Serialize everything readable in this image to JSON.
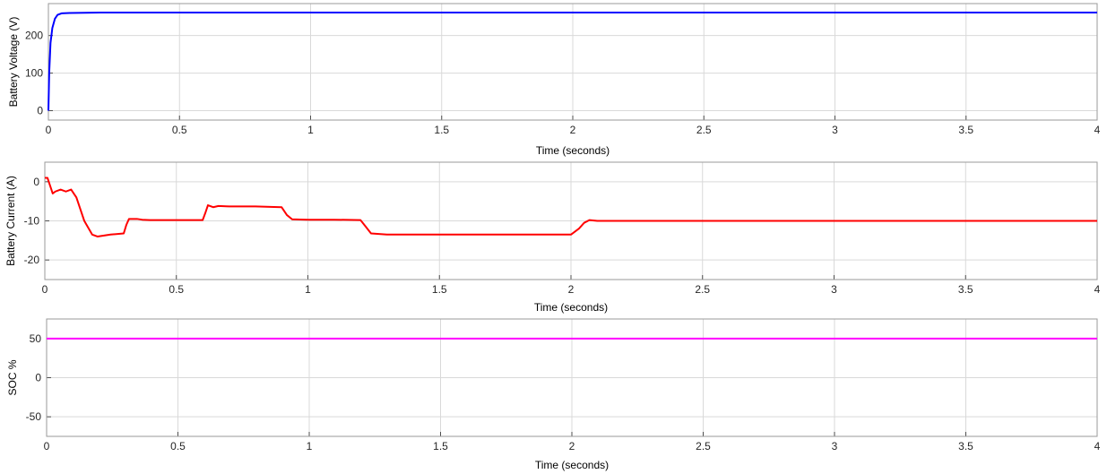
{
  "chart_data": [
    {
      "type": "line",
      "ylabel": "Battery Voltage (V)",
      "xlabel": "Time (seconds)",
      "xlim": [
        0,
        4
      ],
      "ylim": [
        -25,
        285
      ],
      "xticks": [
        0,
        0.5,
        1,
        1.5,
        2,
        2.5,
        3,
        3.5,
        4
      ],
      "xtick_labels": [
        "0",
        "0.5",
        "1",
        "1.5",
        "2",
        "2.5",
        "3",
        "3.5",
        "4"
      ],
      "yticks": [
        0,
        100,
        200
      ],
      "ytick_labels": [
        "0",
        "100",
        "200"
      ],
      "grid": true,
      "series": [
        {
          "color": "#0000ff",
          "x": [
            0,
            0.003,
            0.008,
            0.015,
            0.025,
            0.035,
            0.05,
            0.08,
            0.2,
            0.5,
            1,
            2,
            3,
            4
          ],
          "y": [
            0,
            100,
            180,
            220,
            245,
            255,
            259,
            260,
            261,
            261,
            261,
            261,
            261,
            261
          ]
        }
      ]
    },
    {
      "type": "line",
      "ylabel": "Battery Current (A)",
      "xlabel": "Time (seconds)",
      "xlim": [
        0,
        4
      ],
      "ylim": [
        -25,
        5
      ],
      "xticks": [
        0,
        0.5,
        1,
        1.5,
        2,
        2.5,
        3,
        3.5,
        4
      ],
      "xtick_labels": [
        "0",
        "0.5",
        "1",
        "1.5",
        "2",
        "2.5",
        "3",
        "3.5",
        "4"
      ],
      "yticks": [
        0,
        -10,
        -20
      ],
      "ytick_labels": [
        "0",
        "-10",
        "-20"
      ],
      "grid": true,
      "series": [
        {
          "color": "#ff0000",
          "x": [
            0,
            0.01,
            0.02,
            0.03,
            0.04,
            0.06,
            0.08,
            0.1,
            0.12,
            0.15,
            0.18,
            0.2,
            0.25,
            0.3,
            0.31,
            0.32,
            0.35,
            0.37,
            0.4,
            0.5,
            0.6,
            0.61,
            0.62,
            0.64,
            0.66,
            0.7,
            0.8,
            0.9,
            0.92,
            0.94,
            1.0,
            1.1,
            1.2,
            1.22,
            1.24,
            1.3,
            1.5,
            1.8,
            2.0,
            2.03,
            2.05,
            2.07,
            2.1,
            2.2,
            2.5,
            3.0,
            3.5,
            4.0
          ],
          "y": [
            1,
            1,
            -1,
            -3,
            -2.5,
            -2,
            -2.5,
            -2,
            -4,
            -10,
            -13.5,
            -14,
            -13.5,
            -13.2,
            -11,
            -9.5,
            -9.5,
            -9.7,
            -9.8,
            -9.8,
            -9.8,
            -8,
            -6,
            -6.5,
            -6.2,
            -6.3,
            -6.3,
            -6.5,
            -8.5,
            -9.6,
            -9.7,
            -9.7,
            -9.8,
            -11.5,
            -13.2,
            -13.5,
            -13.5,
            -13.5,
            -13.5,
            -12,
            -10.5,
            -9.8,
            -10,
            -10,
            -10,
            -10,
            -10,
            -10
          ]
        }
      ]
    },
    {
      "type": "line",
      "ylabel": "SOC %",
      "xlabel": "Time (seconds)",
      "xlim": [
        0,
        4
      ],
      "ylim": [
        -75,
        75
      ],
      "xticks": [
        0,
        0.5,
        1,
        1.5,
        2,
        2.5,
        3,
        3.5,
        4
      ],
      "xtick_labels": [
        "0",
        "0.5",
        "1",
        "1.5",
        "2",
        "2.5",
        "3",
        "3.5",
        "4"
      ],
      "yticks": [
        50,
        0,
        -50
      ],
      "ytick_labels": [
        "50",
        "0",
        "-50"
      ],
      "grid": true,
      "series": [
        {
          "color": "#ff00ff",
          "x": [
            0,
            4
          ],
          "y": [
            50,
            50
          ]
        }
      ]
    }
  ]
}
